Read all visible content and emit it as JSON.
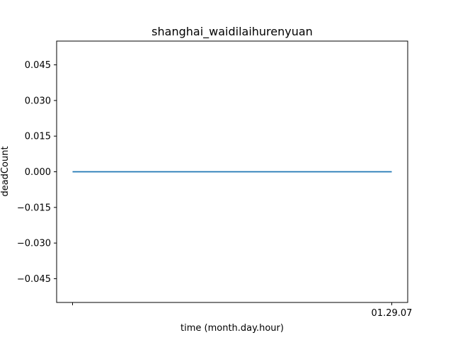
{
  "chart_data": {
    "type": "line",
    "title": "shanghai_waidilaihurenyuan",
    "xlabel": "time (month.day.hour)",
    "ylabel": "deadCount",
    "x": [
      "",
      "01.29.07"
    ],
    "xticks": [
      "",
      "01.29.07"
    ],
    "series": [
      {
        "values": [
          0,
          0
        ],
        "color": "#1f77b4"
      }
    ],
    "yticks": [
      -0.045,
      -0.03,
      -0.015,
      0.0,
      0.015,
      0.03,
      0.045
    ],
    "ytick_labels": [
      "−0.045",
      "−0.030",
      "−0.015",
      "0.000",
      "0.015",
      "0.030",
      "0.045"
    ],
    "ylim": [
      -0.055,
      0.055
    ],
    "grid": false,
    "legend": "none"
  }
}
